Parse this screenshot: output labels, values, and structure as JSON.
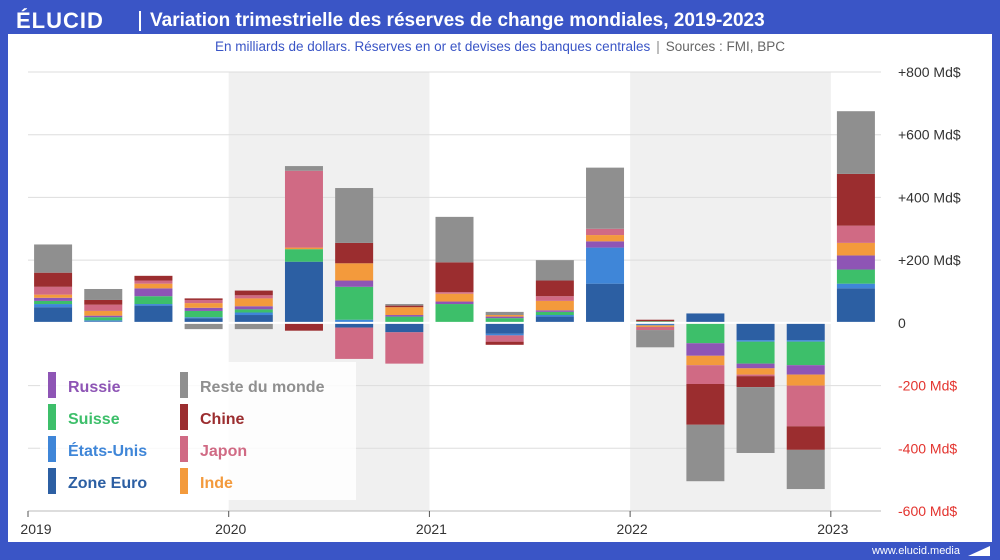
{
  "brand": {
    "logo": "ÉLUCID",
    "website": "www.elucid.media"
  },
  "header": {
    "title": "Variation trimestrielle des réserves de change mondiales, 2019-2023",
    "subtitle": "En milliards de dollars. Réserves en or et devises des banques centrales",
    "sources": "Sources : FMI, BPC"
  },
  "colors": {
    "brand": "#3a55c6",
    "Zone Euro": "#2c5fa3",
    "États-Unis": "#3f86d8",
    "Suisse": "#3dbf6a",
    "Russie": "#8e55b5",
    "Inde": "#f39a3c",
    "Japon": "#d06a84",
    "Chine": "#9b2d2f",
    "Reste du monde": "#8f8f8f",
    "negative_tick": "#e3342f"
  },
  "legend": {
    "column_1": [
      "Russie",
      "Suisse",
      "États-Unis",
      "Zone Euro"
    ],
    "column_2": [
      "Reste du monde",
      "Chine",
      "Japon",
      "Inde"
    ]
  },
  "chart_data": {
    "type": "bar",
    "stacked": true,
    "y_unit": "Md$",
    "ylim": [
      -600,
      800
    ],
    "y_ticks": [
      {
        "value": 800,
        "label": "+800 Md$"
      },
      {
        "value": 600,
        "label": "+600 Md$"
      },
      {
        "value": 400,
        "label": "+400 Md$"
      },
      {
        "value": 200,
        "label": "+200 Md$"
      },
      {
        "value": 0,
        "label": "0"
      },
      {
        "value": -200,
        "label": "-200 Md$"
      },
      {
        "value": -400,
        "label": "-400 Md$"
      },
      {
        "value": -600,
        "label": "-600 Md$"
      }
    ],
    "x_year_labels": [
      "2019",
      "2020",
      "2021",
      "2022",
      "2023"
    ],
    "x_year_start_index": [
      0,
      4,
      8,
      12,
      16
    ],
    "shaded_years": [
      "2020",
      "2022"
    ],
    "categories": [
      "2019 T1",
      "2019 T2",
      "2019 T3",
      "2019 T4",
      "2020 T1",
      "2020 T2",
      "2020 T3",
      "2020 T4",
      "2021 T1",
      "2021 T2",
      "2021 T3",
      "2021 T4",
      "2022 T1",
      "2022 T2",
      "2022 T3",
      "2022 T4",
      "2023 T1"
    ],
    "stack_order": [
      "Zone Euro",
      "États-Unis",
      "Suisse",
      "Russie",
      "Inde",
      "Japon",
      "Chine",
      "Reste du monde"
    ],
    "series": [
      {
        "name": "Zone Euro",
        "values": [
          50,
          5,
          55,
          15,
          25,
          195,
          -15,
          -30,
          0,
          -35,
          20,
          125,
          -5,
          30,
          -55,
          -55,
          110
        ]
      },
      {
        "name": "États-Unis",
        "values": [
          10,
          3,
          5,
          3,
          8,
          0,
          10,
          0,
          0,
          -5,
          5,
          115,
          -3,
          0,
          -5,
          -5,
          15
        ]
      },
      {
        "name": "Suisse",
        "values": [
          10,
          10,
          25,
          20,
          10,
          40,
          105,
          20,
          60,
          15,
          10,
          0,
          5,
          -65,
          -70,
          -75,
          45
        ]
      },
      {
        "name": "Russie",
        "values": [
          10,
          5,
          25,
          10,
          10,
          0,
          20,
          5,
          8,
          5,
          5,
          20,
          0,
          -40,
          -15,
          -30,
          45
        ]
      },
      {
        "name": "Inde",
        "values": [
          10,
          15,
          15,
          15,
          25,
          5,
          55,
          25,
          25,
          5,
          30,
          20,
          -5,
          -30,
          -20,
          -35,
          40
        ]
      },
      {
        "name": "Japon",
        "values": [
          25,
          20,
          10,
          10,
          10,
          245,
          -100,
          -100,
          5,
          -20,
          15,
          20,
          -10,
          -60,
          -5,
          -130,
          55
        ]
      },
      {
        "name": "Chine",
        "values": [
          45,
          15,
          15,
          5,
          15,
          -25,
          65,
          5,
          95,
          -10,
          50,
          0,
          5,
          -130,
          -35,
          -75,
          165
        ]
      },
      {
        "name": "Reste du monde",
        "values": [
          90,
          35,
          0,
          -20,
          -20,
          15,
          175,
          5,
          145,
          10,
          65,
          195,
          -55,
          -180,
          -210,
          -125,
          200
        ]
      }
    ]
  }
}
